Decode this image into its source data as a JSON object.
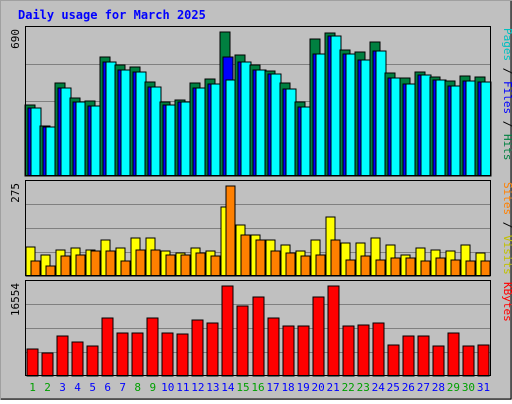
{
  "chart_data": {
    "type": "bar",
    "title": "Daily usage for March 2025",
    "categories": [
      "1",
      "2",
      "3",
      "4",
      "5",
      "6",
      "7",
      "8",
      "9",
      "10",
      "11",
      "12",
      "13",
      "14",
      "15",
      "16",
      "17",
      "18",
      "19",
      "20",
      "21",
      "22",
      "23",
      "24",
      "25",
      "26",
      "27",
      "28",
      "29",
      "30",
      "31"
    ],
    "weekend_days": [
      "1",
      "2",
      "8",
      "9",
      "15",
      "16",
      "22",
      "23",
      "29",
      "30"
    ],
    "highlight_day": "14",
    "panels": [
      {
        "id": "hits-panel",
        "ymax_label": "690",
        "ylim": [
          0,
          690
        ],
        "axis_label_parts": [
          "Pages",
          " / ",
          "Files",
          " / ",
          "Hits"
        ],
        "series": [
          {
            "name": "Hits",
            "color": "#008040",
            "values": [
              340,
              240,
              445,
              375,
              360,
              568,
              533,
              520,
              450,
              355,
              365,
              445,
              465,
              690,
              580,
              530,
              505,
              445,
              355,
              655,
              685,
              605,
              595,
              640,
              495,
              470,
              500,
              475,
              455,
              480,
              475
            ]
          },
          {
            "name": "Files",
            "color": "#0000ff",
            "values": [
              325,
              235,
              420,
              355,
              335,
              545,
              510,
              500,
              425,
              340,
              355,
              420,
              440,
              570,
              545,
              510,
              490,
              415,
              330,
              585,
              670,
              585,
              555,
              600,
              470,
              440,
              485,
              460,
              430,
              455,
              450
            ]
          },
          {
            "name": "Pages",
            "color": "#00ffff",
            "values": [
              325,
              235,
              420,
              355,
              335,
              545,
              510,
              500,
              425,
              340,
              355,
              420,
              440,
              460,
              545,
              510,
              490,
              415,
              330,
              585,
              670,
              585,
              555,
              600,
              470,
              440,
              485,
              460,
              430,
              455,
              450
            ]
          }
        ]
      },
      {
        "id": "visits-panel",
        "ymax_label": "275",
        "ylim": [
          0,
          275
        ],
        "axis_label_parts": [
          "Sites",
          " / ",
          "Visits"
        ],
        "series": [
          {
            "name": "Visits",
            "color": "#ffff00",
            "values": [
              90,
              65,
              80,
              85,
              80,
              110,
              85,
              115,
              115,
              75,
              70,
              85,
              75,
              210,
              155,
              125,
              110,
              95,
              75,
              110,
              180,
              100,
              100,
              115,
              95,
              65,
              85,
              80,
              75,
              95,
              70
            ]
          },
          {
            "name": "Sites",
            "color": "#ff8000",
            "values": [
              45,
              30,
              60,
              65,
              75,
              75,
              45,
              80,
              80,
              65,
              65,
              70,
              60,
              275,
              125,
              110,
              75,
              70,
              60,
              65,
              110,
              50,
              60,
              50,
              55,
              55,
              45,
              55,
              50,
              45,
              45
            ]
          }
        ]
      },
      {
        "id": "kbytes-panel",
        "ymax_label": "16554",
        "ylim": [
          0,
          16554
        ],
        "axis_label_parts": [
          "KBytes"
        ],
        "series": [
          {
            "name": "KBytes",
            "color": "#ff0000",
            "values": [
              5050,
              4260,
              7300,
              6240,
              5530,
              10650,
              7990,
              7920,
              10670,
              7990,
              7700,
              10250,
              9720,
              16554,
              12860,
              14620,
              10650,
              9180,
              9180,
              14520,
              16554,
              9230,
              9300,
              9790,
              5630,
              7300,
              7300,
              5530,
              7990,
              5530,
              5630
            ]
          }
        ]
      }
    ],
    "colors": {
      "background": "#c0c0c0",
      "frame": "#a0a0a0",
      "title": "#0000ff",
      "weekday_label": "#0000ff",
      "weekend_label": "#00a000",
      "highlight_bar": "#0000ff",
      "grid": "#808080"
    }
  }
}
